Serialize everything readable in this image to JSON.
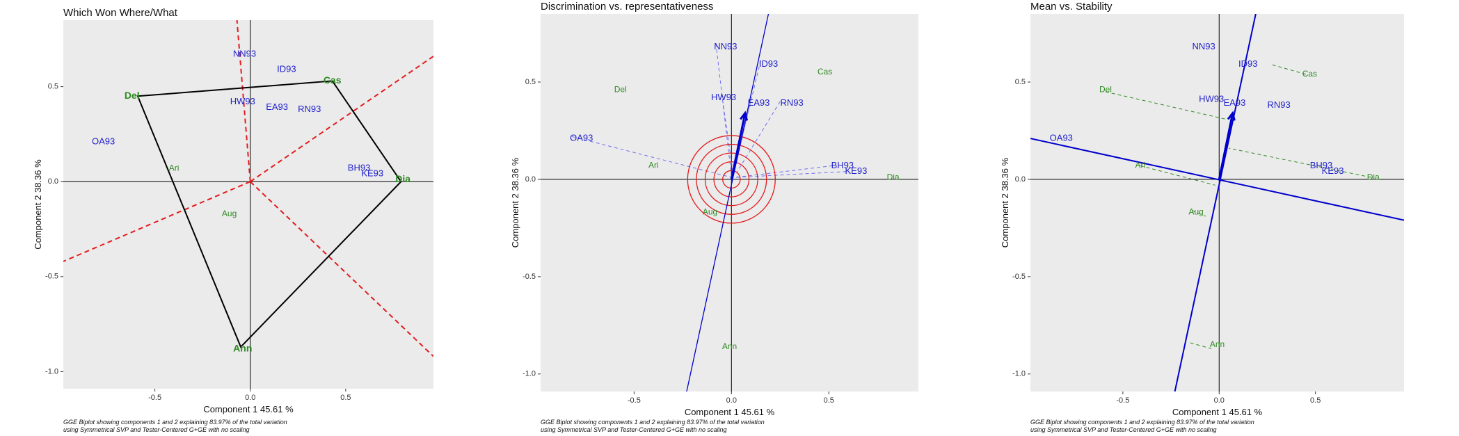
{
  "colors": {
    "panel_bg": "#ebebeb",
    "genotype": "#2222cc",
    "environment": "#2e8b22",
    "sector_line": "#e41a1c",
    "hull": "#000000",
    "axis_arrow": "#0000cc",
    "ring": "#e41a1c"
  },
  "chart_data": [
    {
      "type": "scatter",
      "plot_kind": "which-won-where",
      "title": "Which Won Where/What",
      "xlabel": "Component 1 45.61 %",
      "ylabel": "Component 2 38.36 %",
      "caption": [
        "GGE Biplot showing components 1 and 2 explaining 83.97% of the total variation",
        "using Symmetrical SVP and Tester-Centered G+GE with no scaling"
      ],
      "xlim": [
        -0.98,
        0.96
      ],
      "ylim": [
        -1.09,
        0.85
      ],
      "xticks": [
        -0.5,
        0.0,
        0.5
      ],
      "xtick_labels": [
        "-0.5",
        "0.0",
        "0.5"
      ],
      "yticks": [
        -1.0,
        -0.5,
        0.0,
        0.5
      ],
      "ytick_labels": [
        "-1.0",
        "-0.5",
        "0.0",
        "0.5"
      ],
      "genotypes": [
        {
          "name": "NN93",
          "x": -0.03,
          "y": 0.67
        },
        {
          "name": "ID93",
          "x": 0.19,
          "y": 0.59
        },
        {
          "name": "HW93",
          "x": -0.04,
          "y": 0.42
        },
        {
          "name": "EA93",
          "x": 0.14,
          "y": 0.39
        },
        {
          "name": "RN93",
          "x": 0.31,
          "y": 0.38
        },
        {
          "name": "OA93",
          "x": -0.77,
          "y": 0.21
        },
        {
          "name": "BH93",
          "x": 0.57,
          "y": 0.07
        },
        {
          "name": "KE93",
          "x": 0.64,
          "y": 0.04
        }
      ],
      "environments": [
        {
          "name": "Del",
          "x": -0.62,
          "y": 0.45,
          "bold": true
        },
        {
          "name": "Cas",
          "x": 0.43,
          "y": 0.53,
          "bold": true
        },
        {
          "name": "Dia",
          "x": 0.8,
          "y": 0.01,
          "bold": true
        },
        {
          "name": "Ann",
          "x": -0.04,
          "y": -0.88,
          "bold": true
        },
        {
          "name": "Ari",
          "x": -0.4,
          "y": 0.07,
          "bold": false
        },
        {
          "name": "Aug",
          "x": -0.11,
          "y": -0.17,
          "bold": false
        }
      ],
      "hull": [
        [
          -0.59,
          0.45
        ],
        [
          0.43,
          0.53
        ],
        [
          0.79,
          0.0
        ],
        [
          -0.05,
          -0.87
        ]
      ],
      "sector_rays": [
        [
          -0.07,
          0.85
        ],
        [
          0.96,
          0.66
        ],
        [
          0.96,
          -0.92
        ],
        [
          -0.98,
          -0.42
        ]
      ]
    },
    {
      "type": "scatter",
      "plot_kind": "discrimination-representativeness",
      "title": "Discrimination vs. representativeness",
      "xlabel": "Component 1 45.61 %",
      "ylabel": "Component 2 38.36 %",
      "caption": [
        "GGE Biplot showing components 1 and 2 explaining 83.97% of the total variation",
        "using Symmetrical SVP and Tester-Centered G+GE with no scaling"
      ],
      "xlim": [
        -0.98,
        0.96
      ],
      "ylim": [
        -1.09,
        0.85
      ],
      "xticks": [
        -0.5,
        0.0,
        0.5
      ],
      "xtick_labels": [
        "-0.5",
        "0.0",
        "0.5"
      ],
      "yticks": [
        -1.0,
        -0.5,
        0.0,
        0.5
      ],
      "ytick_labels": [
        "-1.0",
        "-0.5",
        "0.0",
        "0.5"
      ],
      "genotypes": [
        {
          "name": "NN93",
          "x": -0.03,
          "y": 0.68
        },
        {
          "name": "ID93",
          "x": 0.19,
          "y": 0.59
        },
        {
          "name": "HW93",
          "x": -0.04,
          "y": 0.42
        },
        {
          "name": "EA93",
          "x": 0.14,
          "y": 0.39
        },
        {
          "name": "RN93",
          "x": 0.31,
          "y": 0.39
        },
        {
          "name": "OA93",
          "x": -0.77,
          "y": 0.21
        },
        {
          "name": "BH93",
          "x": 0.57,
          "y": 0.07
        },
        {
          "name": "KE93",
          "x": 0.64,
          "y": 0.04
        }
      ],
      "environments": [
        {
          "name": "Del",
          "x": -0.57,
          "y": 0.46,
          "bold": false
        },
        {
          "name": "Cas",
          "x": 0.48,
          "y": 0.55,
          "bold": false
        },
        {
          "name": "Dia",
          "x": 0.83,
          "y": 0.01,
          "bold": false
        },
        {
          "name": "Ari",
          "x": -0.4,
          "y": 0.07,
          "bold": false
        },
        {
          "name": "Aug",
          "x": -0.11,
          "y": -0.17,
          "bold": false
        },
        {
          "name": "Ann",
          "x": -0.01,
          "y": -0.86,
          "bold": false
        }
      ],
      "ati_line": [
        [
          -0.23,
          -1.09
        ],
        [
          0.19,
          0.85
        ]
      ],
      "ati_arrow_tip": [
        0.07,
        0.34
      ],
      "ring_radii": [
        0.045,
        0.09,
        0.135,
        0.18,
        0.225
      ],
      "projection_dashes": [
        {
          "from": [
            -0.08,
            0.7
          ],
          "to": [
            0.0,
            0.02
          ]
        },
        {
          "from": [
            0.15,
            0.61
          ],
          "to": [
            0.01,
            0.03
          ]
        },
        {
          "from": [
            -0.05,
            0.44
          ],
          "to": [
            0.01,
            0.02
          ]
        },
        {
          "from": [
            0.1,
            0.41
          ],
          "to": [
            0.02,
            0.06
          ]
        },
        {
          "from": [
            0.25,
            0.4
          ],
          "to": [
            0.03,
            0.04
          ]
        },
        {
          "from": [
            -0.82,
            0.22
          ],
          "to": [
            0.0,
            0.01
          ]
        },
        {
          "from": [
            0.52,
            0.07
          ],
          "to": [
            0.02,
            0.01
          ]
        },
        {
          "from": [
            0.59,
            0.04
          ],
          "to": [
            0.02,
            0.01
          ]
        }
      ]
    },
    {
      "type": "scatter",
      "plot_kind": "mean-vs-stability",
      "title": "Mean vs. Stability",
      "xlabel": "Component 1 45.61 %",
      "ylabel": "Component 2 38.36 %",
      "caption": [
        "GGE Biplot showing components 1 and 2 explaining 83.97% of the total variation",
        "using Symmetrical SVP and Tester-Centered G+GE with no scaling"
      ],
      "xlim": [
        -0.98,
        0.96
      ],
      "ylim": [
        -1.09,
        0.85
      ],
      "xticks": [
        -0.5,
        0.0,
        0.5
      ],
      "xtick_labels": [
        "-0.5",
        "0.0",
        "0.5"
      ],
      "yticks": [
        -1.0,
        -0.5,
        0.0,
        0.5
      ],
      "ytick_labels": [
        "-1.0",
        "-0.5",
        "0.0",
        "0.5"
      ],
      "genotypes": [
        {
          "name": "NN93",
          "x": -0.08,
          "y": 0.68
        },
        {
          "name": "ID93",
          "x": 0.15,
          "y": 0.59
        },
        {
          "name": "HW93",
          "x": -0.04,
          "y": 0.41
        },
        {
          "name": "EA93",
          "x": 0.08,
          "y": 0.39
        },
        {
          "name": "RN93",
          "x": 0.31,
          "y": 0.38
        },
        {
          "name": "OA93",
          "x": -0.82,
          "y": 0.21
        },
        {
          "name": "BH93",
          "x": 0.53,
          "y": 0.07
        },
        {
          "name": "KE93",
          "x": 0.59,
          "y": 0.04
        }
      ],
      "environments": [
        {
          "name": "Cas",
          "x": 0.47,
          "y": 0.54,
          "bold": false
        },
        {
          "name": "Del",
          "x": -0.59,
          "y": 0.46,
          "bold": false
        },
        {
          "name": "Dia",
          "x": 0.8,
          "y": 0.01,
          "bold": false
        },
        {
          "name": "Ari",
          "x": -0.41,
          "y": 0.07,
          "bold": false
        },
        {
          "name": "Aug",
          "x": -0.12,
          "y": -0.17,
          "bold": false
        },
        {
          "name": "Ann",
          "x": -0.01,
          "y": -0.85,
          "bold": false
        }
      ],
      "aec_abscissa": [
        [
          -0.98,
          0.21
        ],
        [
          0.96,
          -0.21
        ]
      ],
      "aec_ordinate": [
        [
          -0.23,
          -1.09
        ],
        [
          0.19,
          0.85
        ]
      ],
      "aec_arrow_tip": [
        0.07,
        0.34
      ],
      "projection_dashes": [
        {
          "from": [
            0.45,
            0.54
          ],
          "to": [
            0.27,
            0.59
          ]
        },
        {
          "from": [
            -0.59,
            0.45
          ],
          "to": [
            0.03,
            0.31
          ]
        },
        {
          "from": [
            0.79,
            0.01
          ],
          "to": [
            0.05,
            0.16
          ]
        },
        {
          "from": [
            -0.41,
            0.07
          ],
          "to": [
            -0.02,
            -0.03
          ]
        },
        {
          "from": [
            -0.14,
            -0.16
          ],
          "to": [
            -0.07,
            -0.19
          ]
        },
        {
          "from": [
            -0.15,
            -0.84
          ],
          "to": [
            -0.04,
            -0.87
          ]
        }
      ]
    }
  ]
}
